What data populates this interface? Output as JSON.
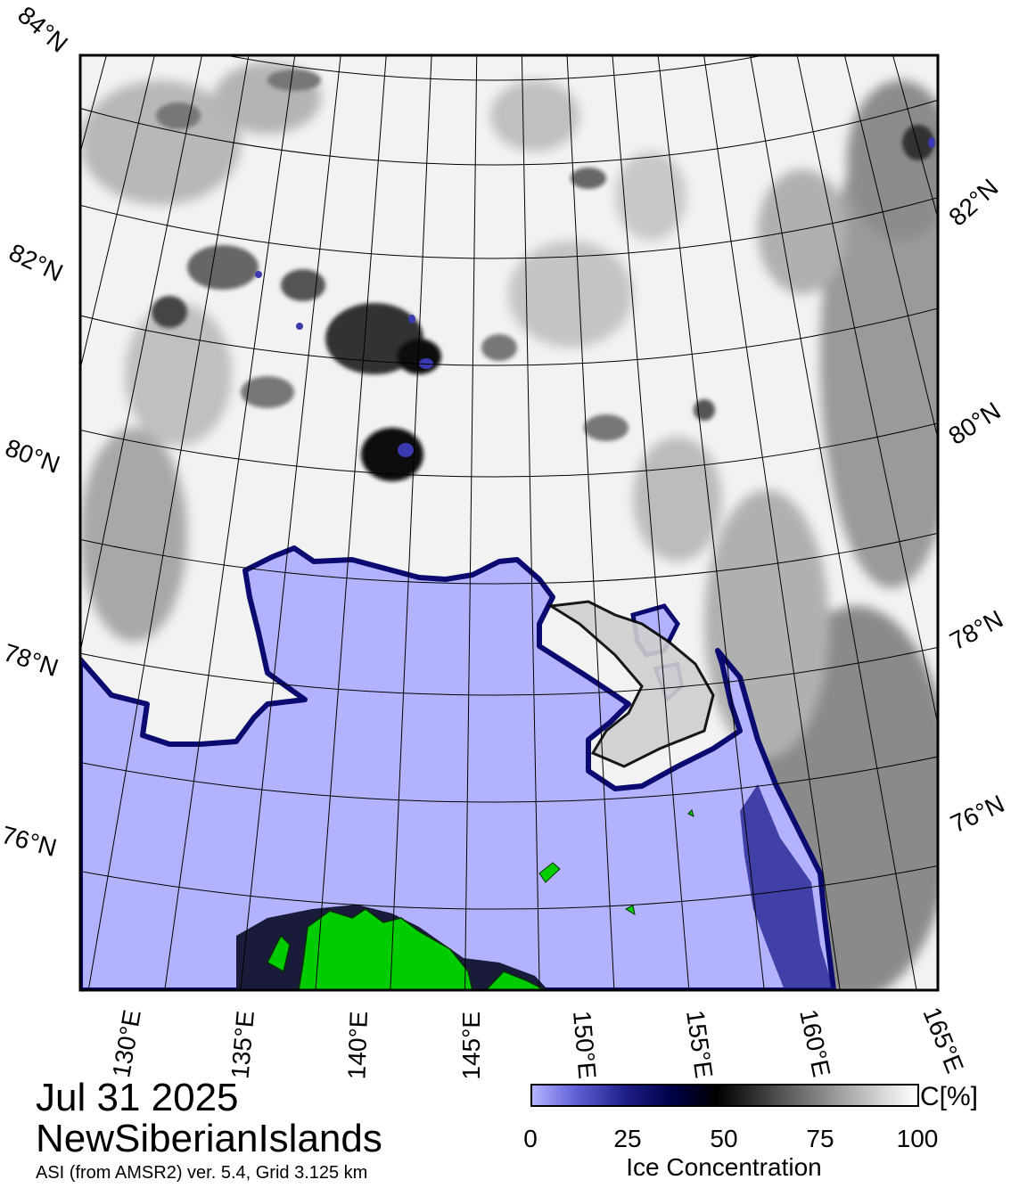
{
  "map": {
    "latitude_labels": [
      "84°N",
      "82°N",
      "80°N",
      "78°N",
      "76°N"
    ],
    "longitude_labels": [
      "130°E",
      "135°E",
      "140°E",
      "145°E",
      "150°E",
      "155°E",
      "160°E",
      "165°E"
    ],
    "colors": {
      "open_water": "#b2b2ff",
      "land": "#00cc00",
      "ice_high": "#ffffff",
      "ice_mid": "#808080",
      "ice_edge": "#000060"
    }
  },
  "title": {
    "date": "Jul 31 2025",
    "region": "NewSiberianIslands",
    "source": "ASI (from AMSR2) ver. 5.4,  Grid 3.125 km"
  },
  "colorbar": {
    "unit": "C[%]",
    "ticks": [
      "0",
      "25",
      "50",
      "75",
      "100"
    ],
    "label": "Ice Concentration",
    "range": [
      0,
      100
    ]
  }
}
